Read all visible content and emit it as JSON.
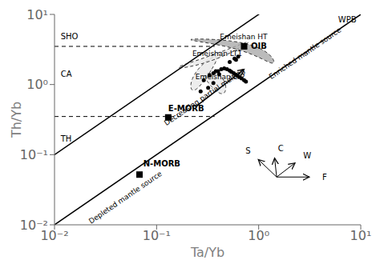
{
  "chart_data": {
    "type": "scatter",
    "x_label": "Ta/Yb",
    "y_label": "Th/Yb",
    "log": true,
    "grid": false,
    "xlim": [
      0.01,
      10
    ],
    "ylim": [
      0.01,
      10
    ],
    "xticks": [
      {
        "value": 0.01,
        "label": "10⁻²"
      },
      {
        "value": 0.1,
        "label": "10⁻¹"
      },
      {
        "value": 1,
        "label": "10⁰"
      },
      {
        "value": 10,
        "label": "10¹"
      }
    ],
    "yticks": [
      {
        "value": 0.01,
        "label": "10⁻²"
      },
      {
        "value": 0.1,
        "label": "10⁻¹"
      },
      {
        "value": 1,
        "label": "10⁰"
      },
      {
        "value": 10,
        "label": "10¹"
      }
    ],
    "x": [
      0.33,
      0.36,
      0.4,
      0.43,
      0.46,
      0.49,
      0.52,
      0.54,
      0.57,
      0.6,
      0.62,
      0.65,
      0.68,
      0.72,
      0.75,
      0.32,
      0.36,
      0.29,
      0.27,
      0.52,
      0.58,
      0.63,
      0.6,
      0.38,
      0.41
    ],
    "values": [
      1.35,
      1.45,
      1.55,
      1.65,
      1.7,
      1.65,
      1.58,
      1.52,
      1.45,
      1.38,
      1.32,
      1.28,
      1.22,
      1.15,
      1.1,
      0.9,
      1.05,
      1.15,
      0.8,
      2.1,
      2.35,
      2.5,
      2.25,
      1.55,
      1.4
    ],
    "color": "#000000",
    "marker": "circle",
    "reference_points": [
      {
        "label": "N-MORB",
        "x": 0.068,
        "y": 0.052,
        "label_at": [
          0.074,
          0.064
        ],
        "marker": "square"
      },
      {
        "label": "E-MORB",
        "x": 0.13,
        "y": 0.34,
        "label_at": [
          0.13,
          0.391
        ],
        "marker": "square"
      },
      {
        "label": "OIB",
        "x": 0.72,
        "y": 3.5,
        "label_at": [
          0.84,
          3.5
        ],
        "marker": "square"
      }
    ],
    "diagonal_factors": [
      10,
      1.0
    ],
    "dashed_lines": [
      {
        "y": 3.5,
        "x_end": 0.37
      },
      {
        "y": 0.35,
        "x_end": 0.37
      }
    ],
    "annotations": [
      {
        "text": "SHO",
        "x": 0.0115,
        "y": 4.8
      },
      {
        "text": "CA",
        "x": 0.0115,
        "y": 1.4
      },
      {
        "text": "TH",
        "x": 0.0115,
        "y": 0.17
      },
      {
        "text": "WPB",
        "x": 6.0,
        "y": 8.5
      }
    ],
    "slanted_annotations": [
      {
        "text": "Enriched mantle source",
        "x": 3.0,
        "y": 2.5
      },
      {
        "text": "Depleted mantle source",
        "x": 0.052,
        "y": 0.022
      },
      {
        "text": "Decreasing partial melting",
        "x": 0.31,
        "y": 0.6
      }
    ],
    "arrow": {
      "from": [
        0.24,
        0.48
      ],
      "to": [
        0.72,
        1.65
      ]
    },
    "regions": [
      {
        "label": "Emeishan LT1",
        "center_log": [
          -0.52,
          0.22
        ],
        "size_log": [
          0.13,
          0.42
        ],
        "angle": -5,
        "label_log": [
          -0.65,
          0.38
        ],
        "color": "#e8e8e8"
      },
      {
        "label": "Emeishan LT2",
        "center_log": [
          -0.41,
          0.04
        ],
        "size_log": [
          0.16,
          0.28
        ],
        "angle": 8,
        "label_log": [
          -0.62,
          0.05
        ],
        "color": "#e8e8e8"
      },
      {
        "label": "Emeishan HT",
        "center_log": [
          -0.32,
          0.46
        ],
        "size_log": [
          0.11,
          0.35
        ],
        "angle": -15,
        "label_log": [
          -0.38,
          0.62
        ],
        "color": "#e8e8e8"
      },
      {
        "center_log": [
          -0.09,
          0.51
        ],
        "size_log": [
          0.22,
          0.35
        ],
        "angle": 25,
        "color": "#aaaaaa"
      }
    ],
    "compass": {
      "origin": [
        1.5,
        0.048
      ],
      "arrows": [
        {
          "label": "S",
          "d_log": [
            -0.18,
            0.25
          ],
          "label_d_log": [
            -0.1,
            0.12
          ]
        },
        {
          "label": "C",
          "d_log": [
            -0.02,
            0.27
          ],
          "label_d_log": [
            0.06,
            0.14
          ]
        },
        {
          "label": "W",
          "d_log": [
            0.18,
            0.2
          ],
          "label_d_log": [
            0.12,
            0.1
          ]
        },
        {
          "label": "F",
          "d_log": [
            0.32,
            0.0
          ],
          "label_d_log": [
            0.15,
            0.0
          ]
        }
      ]
    }
  }
}
